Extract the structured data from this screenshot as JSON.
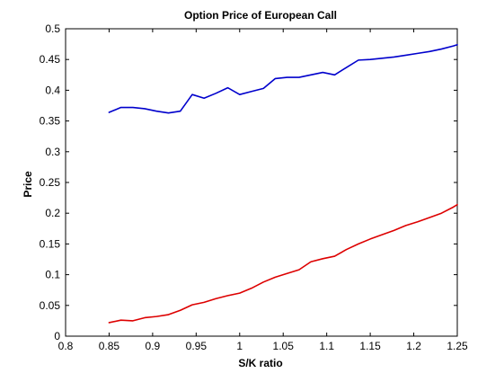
{
  "chart_data": {
    "type": "line",
    "title": "Option Price of European Call",
    "xlabel": "S/K ratio",
    "ylabel": "Price",
    "xlim": [
      0.8,
      1.25
    ],
    "ylim": [
      0,
      0.5
    ],
    "xticks": [
      "0.8",
      "0.85",
      "0.9",
      "0.95",
      "1",
      "1.05",
      "1.1",
      "1.15",
      "1.2",
      "1.25"
    ],
    "yticks": [
      "0",
      "0.05",
      "0.1",
      "0.15",
      "0.2",
      "0.25",
      "0.3",
      "0.35",
      "0.4",
      "0.45",
      "0.5"
    ],
    "xtick_values": [
      0.8,
      0.85,
      0.9,
      0.95,
      1.0,
      1.05,
      1.1,
      1.15,
      1.2,
      1.25
    ],
    "ytick_values": [
      0,
      0.05,
      0.1,
      0.15,
      0.2,
      0.25,
      0.3,
      0.35,
      0.4,
      0.45,
      0.5
    ],
    "grid": false,
    "series": [
      {
        "color": "#0000cc",
        "x": [
          0.85,
          0.8636,
          0.8773,
          0.8909,
          0.9045,
          0.9182,
          0.9318,
          0.9455,
          0.9591,
          0.9727,
          0.9864,
          1.0,
          1.0136,
          1.0273,
          1.0409,
          1.0545,
          1.0682,
          1.0818,
          1.0955,
          1.1091,
          1.1227,
          1.1364,
          1.15,
          1.1636,
          1.1773,
          1.1909,
          1.2045,
          1.2182,
          1.2318,
          1.2455,
          1.25
        ],
        "values": [
          0.364,
          0.372,
          0.372,
          0.37,
          0.366,
          0.363,
          0.366,
          0.393,
          0.387,
          0.395,
          0.404,
          0.393,
          0.398,
          0.403,
          0.419,
          0.421,
          0.421,
          0.425,
          0.429,
          0.425,
          0.437,
          0.449,
          0.45,
          0.452,
          0.454,
          0.457,
          0.46,
          0.463,
          0.467,
          0.472,
          0.474
        ]
      },
      {
        "color": "#dd0000",
        "x": [
          0.85,
          0.8636,
          0.8773,
          0.8909,
          0.9045,
          0.9182,
          0.9318,
          0.9455,
          0.9591,
          0.9727,
          0.9864,
          1.0,
          1.0136,
          1.0273,
          1.0409,
          1.0545,
          1.0682,
          1.0818,
          1.0955,
          1.1091,
          1.1227,
          1.1364,
          1.15,
          1.1636,
          1.1773,
          1.1909,
          1.2045,
          1.2182,
          1.2318,
          1.2455,
          1.25
        ],
        "values": [
          0.022,
          0.026,
          0.025,
          0.03,
          0.032,
          0.035,
          0.042,
          0.051,
          0.055,
          0.061,
          0.066,
          0.07,
          0.078,
          0.088,
          0.096,
          0.102,
          0.108,
          0.121,
          0.126,
          0.13,
          0.141,
          0.15,
          0.158,
          0.165,
          0.172,
          0.18,
          0.186,
          0.193,
          0.2,
          0.21,
          0.214
        ]
      }
    ]
  }
}
